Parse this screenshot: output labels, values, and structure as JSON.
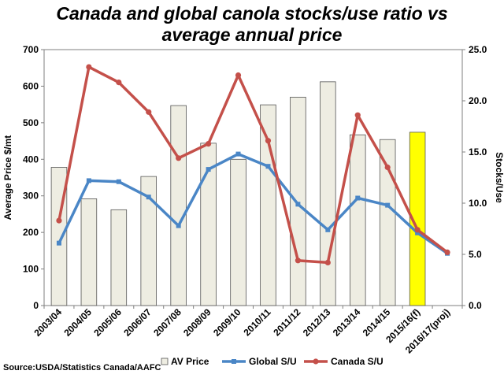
{
  "chart_data": {
    "type": "bar",
    "title_line1": "Canada and global canola stocks/use ratio vs",
    "title_line2": "average annual price",
    "categories": [
      "2003/04",
      "2004/05",
      "2005/06",
      "2006/07",
      "2007/08",
      "2008/09",
      "2009/10",
      "2010/11",
      "2011/12",
      "2012/13",
      "2013/14",
      "2014/15",
      "2015/16(f)",
      "2016/17(proj)"
    ],
    "ylabel": "Average Price $/mt",
    "y2label": "Stocks/Use",
    "ylim": [
      0,
      700
    ],
    "y2lim": [
      0,
      25
    ],
    "yticks": [
      "0",
      "100",
      "200",
      "300",
      "400",
      "500",
      "600",
      "700"
    ],
    "y2ticks": [
      "0.0",
      "5.0",
      "10.0",
      "15.0",
      "20.0",
      "25.0"
    ],
    "series": [
      {
        "name": "AV Price",
        "type": "bar",
        "axis": "left",
        "values": [
          378,
          292,
          262,
          353,
          547,
          444,
          400,
          549,
          570,
          612,
          467,
          454,
          474,
          null
        ]
      },
      {
        "name": "Global S/U",
        "type": "line",
        "axis": "right",
        "values": [
          6.1,
          12.2,
          12.1,
          10.6,
          7.8,
          13.3,
          14.8,
          13.6,
          9.9,
          7.4,
          10.5,
          9.8,
          7.1,
          5.1
        ]
      },
      {
        "name": "Canada S/U",
        "type": "line",
        "axis": "right",
        "values": [
          8.3,
          23.3,
          21.8,
          18.9,
          14.4,
          15.8,
          22.5,
          16.1,
          4.4,
          4.2,
          18.6,
          13.5,
          7.4,
          5.2
        ]
      }
    ],
    "highlight_index": 12,
    "colors": {
      "bar": "#eeede2",
      "bar_border": "#555555",
      "highlight": "#ffff00",
      "global": "#4a86c6",
      "canada": "#c4504a"
    },
    "grid": false,
    "legend_position": "bottom",
    "source": "Source:USDA/Statistics Canada/AAFC"
  }
}
